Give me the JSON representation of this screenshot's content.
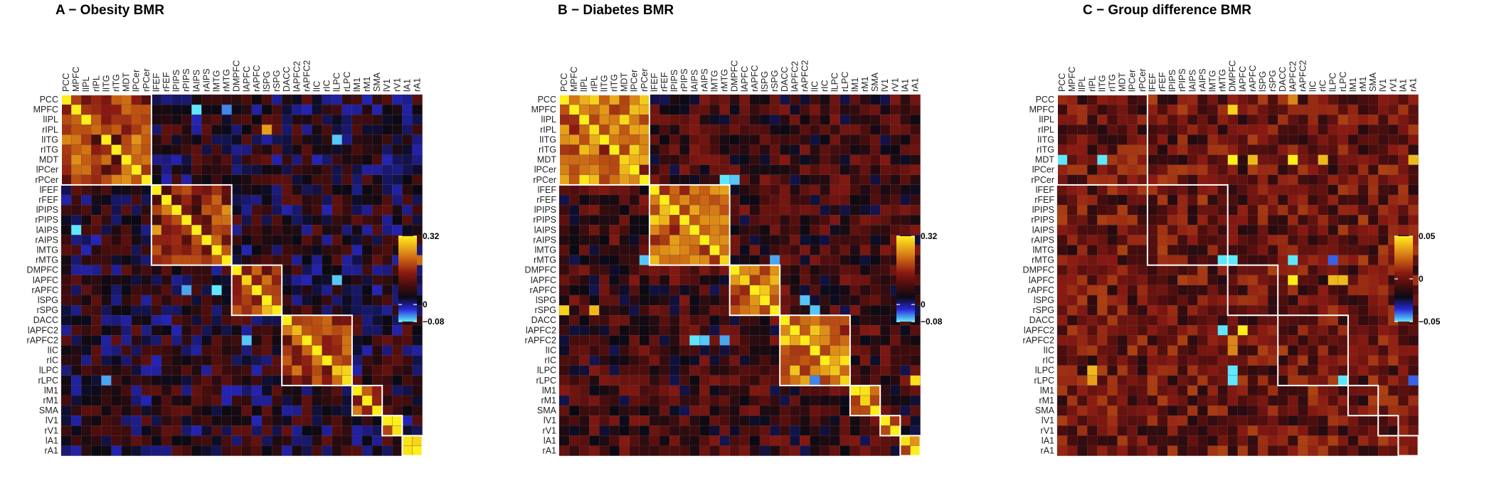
{
  "regions": [
    "PCC",
    "MPFC",
    "lIPL",
    "rIPL",
    "lITG",
    "rITG",
    "MDT",
    "lPCer",
    "rPCer",
    "lFEF",
    "rFEF",
    "lPIPS",
    "rPIPS",
    "lAIPS",
    "rAIPS",
    "lMTG",
    "rMTG",
    "DMPFC",
    "lAPFC",
    "rAPFC",
    "lSPG",
    "rSPG",
    "DACC",
    "lAPFC2",
    "rAPFC2",
    "lIC",
    "rIC",
    "lLPC",
    "rLPC",
    "lM1",
    "rM1",
    "SMA",
    "lV1",
    "rV1",
    "lA1",
    "rA1"
  ],
  "network_blocks": [
    [
      0,
      8
    ],
    [
      9,
      16
    ],
    [
      17,
      21
    ],
    [
      22,
      28
    ],
    [
      29,
      31
    ],
    [
      32,
      33
    ],
    [
      34,
      35
    ]
  ],
  "colorscale": {
    "stops": [
      "#5ee8ff",
      "#2929d8",
      "#0a0a14",
      "#4a0d0d",
      "#8b1a12",
      "#c45a12",
      "#e8a21a",
      "#ffee1a"
    ],
    "note": "cyan-blue-black-dark red-orange-yellow"
  },
  "chart_data": [
    {
      "type": "heatmap",
      "title": "A − Obesity BMR",
      "zlim": [
        -0.08,
        0.32
      ],
      "colorbar_ticks": [
        {
          "value": 0.32,
          "label": "0.32"
        },
        {
          "value": 0,
          "label": "0"
        },
        {
          "value": -0.08,
          "label": "−0.08"
        }
      ],
      "base": 0.05,
      "within_block": 0.15,
      "highlights": [
        {
          "r": 0,
          "c": 0,
          "v": 0.32
        },
        {
          "r": 3,
          "c": 3,
          "v": 0.22
        },
        {
          "r": 3,
          "c": 20,
          "v": 0.26
        },
        {
          "r": 1,
          "c": 13,
          "v": -0.08
        },
        {
          "r": 1,
          "c": 16,
          "v": -0.05
        },
        {
          "r": 13,
          "c": 1,
          "v": -0.08
        },
        {
          "r": 19,
          "c": 12,
          "v": -0.06
        },
        {
          "r": 19,
          "c": 15,
          "v": -0.08
        },
        {
          "r": 18,
          "c": 27,
          "v": -0.07
        },
        {
          "r": 4,
          "c": 27,
          "v": -0.07
        },
        {
          "r": 28,
          "c": 4,
          "v": -0.06
        },
        {
          "r": 24,
          "c": 18,
          "v": -0.07
        },
        {
          "r": 18,
          "c": 18,
          "v": 0.3
        },
        {
          "r": 21,
          "c": 20,
          "v": 0.28
        },
        {
          "r": 23,
          "c": 23,
          "v": 0.28
        },
        {
          "r": 27,
          "c": 27,
          "v": 0.29
        },
        {
          "r": 28,
          "c": 28,
          "v": 0.31
        },
        {
          "r": 27,
          "c": 28,
          "v": 0.3
        },
        {
          "r": 32,
          "c": 32,
          "v": 0.32
        },
        {
          "r": 33,
          "c": 33,
          "v": 0.31
        },
        {
          "r": 32,
          "c": 33,
          "v": 0.32
        },
        {
          "r": 34,
          "c": 34,
          "v": 0.31
        },
        {
          "r": 35,
          "c": 35,
          "v": 0.32
        },
        {
          "r": 34,
          "c": 35,
          "v": 0.3
        },
        {
          "r": 35,
          "c": 34,
          "v": 0.31
        },
        {
          "r": 16,
          "c": 35,
          "v": 0.22
        },
        {
          "r": 34,
          "c": 35,
          "v": 0.3
        }
      ]
    },
    {
      "type": "heatmap",
      "title": "B − Diabetes BMR",
      "zlim": [
        -0.08,
        0.32
      ],
      "colorbar_ticks": [
        {
          "value": 0.32,
          "label": "0.32"
        },
        {
          "value": 0,
          "label": "0"
        },
        {
          "value": -0.08,
          "label": "−0.08"
        }
      ],
      "base": 0.08,
      "within_block": 0.18,
      "highlights": [
        {
          "r": 0,
          "c": 0,
          "v": 0.32
        },
        {
          "r": 0,
          "c": 3,
          "v": 0.3
        },
        {
          "r": 3,
          "c": 3,
          "v": 0.31
        },
        {
          "r": 6,
          "c": 6,
          "v": 0.3
        },
        {
          "r": 8,
          "c": 16,
          "v": -0.08
        },
        {
          "r": 8,
          "c": 17,
          "v": -0.07
        },
        {
          "r": 16,
          "c": 8,
          "v": -0.07
        },
        {
          "r": 16,
          "c": 16,
          "v": 0.3
        },
        {
          "r": 16,
          "c": 21,
          "v": -0.06
        },
        {
          "r": 18,
          "c": 18,
          "v": 0.3
        },
        {
          "r": 24,
          "c": 13,
          "v": -0.08
        },
        {
          "r": 24,
          "c": 14,
          "v": -0.07
        },
        {
          "r": 24,
          "c": 16,
          "v": -0.06
        },
        {
          "r": 21,
          "c": 0,
          "v": 0.3
        },
        {
          "r": 21,
          "c": 3,
          "v": 0.28
        },
        {
          "r": 23,
          "c": 25,
          "v": 0.29
        },
        {
          "r": 28,
          "c": 28,
          "v": 0.3
        },
        {
          "r": 27,
          "c": 27,
          "v": 0.29
        },
        {
          "r": 28,
          "c": 35,
          "v": 0.31
        },
        {
          "r": 30,
          "c": 30,
          "v": 0.3
        },
        {
          "r": 33,
          "c": 33,
          "v": 0.32
        },
        {
          "r": 34,
          "c": 34,
          "v": 0.31
        },
        {
          "r": 35,
          "c": 35,
          "v": 0.32
        },
        {
          "r": 20,
          "c": 24,
          "v": -0.07
        },
        {
          "r": 21,
          "c": 25,
          "v": -0.07
        },
        {
          "r": 28,
          "c": 25,
          "v": -0.05
        }
      ]
    },
    {
      "type": "heatmap",
      "title": "C − Group difference BMR",
      "zlim": [
        -0.05,
        0.05
      ],
      "colorbar_ticks": [
        {
          "value": 0.05,
          "label": "0.05"
        },
        {
          "value": 0,
          "label": "0"
        },
        {
          "value": -0.05,
          "label": "−0.05"
        }
      ],
      "base": 0.0,
      "within_block": 0.0,
      "highlights": [
        {
          "r": 1,
          "c": 17,
          "v": 0.045
        },
        {
          "r": 6,
          "c": 0,
          "v": -0.05
        },
        {
          "r": 6,
          "c": 4,
          "v": -0.05
        },
        {
          "r": 6,
          "c": 17,
          "v": 0.05
        },
        {
          "r": 6,
          "c": 19,
          "v": 0.04
        },
        {
          "r": 6,
          "c": 23,
          "v": 0.05
        },
        {
          "r": 6,
          "c": 26,
          "v": 0.04
        },
        {
          "r": 6,
          "c": 35,
          "v": 0.04
        },
        {
          "r": 16,
          "c": 16,
          "v": -0.05
        },
        {
          "r": 16,
          "c": 17,
          "v": -0.05
        },
        {
          "r": 16,
          "c": 23,
          "v": -0.05
        },
        {
          "r": 16,
          "c": 27,
          "v": -0.04
        },
        {
          "r": 18,
          "c": 23,
          "v": 0.05
        },
        {
          "r": 18,
          "c": 27,
          "v": 0.04
        },
        {
          "r": 18,
          "c": 28,
          "v": 0.04
        },
        {
          "r": 23,
          "c": 16,
          "v": -0.05
        },
        {
          "r": 23,
          "c": 18,
          "v": 0.05
        },
        {
          "r": 27,
          "c": 17,
          "v": -0.05
        },
        {
          "r": 28,
          "c": 17,
          "v": -0.05
        },
        {
          "r": 28,
          "c": 28,
          "v": -0.05
        },
        {
          "r": 27,
          "c": 3,
          "v": 0.04
        },
        {
          "r": 28,
          "c": 3,
          "v": 0.035
        },
        {
          "r": 0,
          "c": 23,
          "v": 0.03
        },
        {
          "r": 28,
          "c": 35,
          "v": -0.04
        },
        {
          "r": 24,
          "c": 17,
          "v": 0.03
        },
        {
          "r": 25,
          "c": 17,
          "v": 0.03
        }
      ]
    }
  ]
}
